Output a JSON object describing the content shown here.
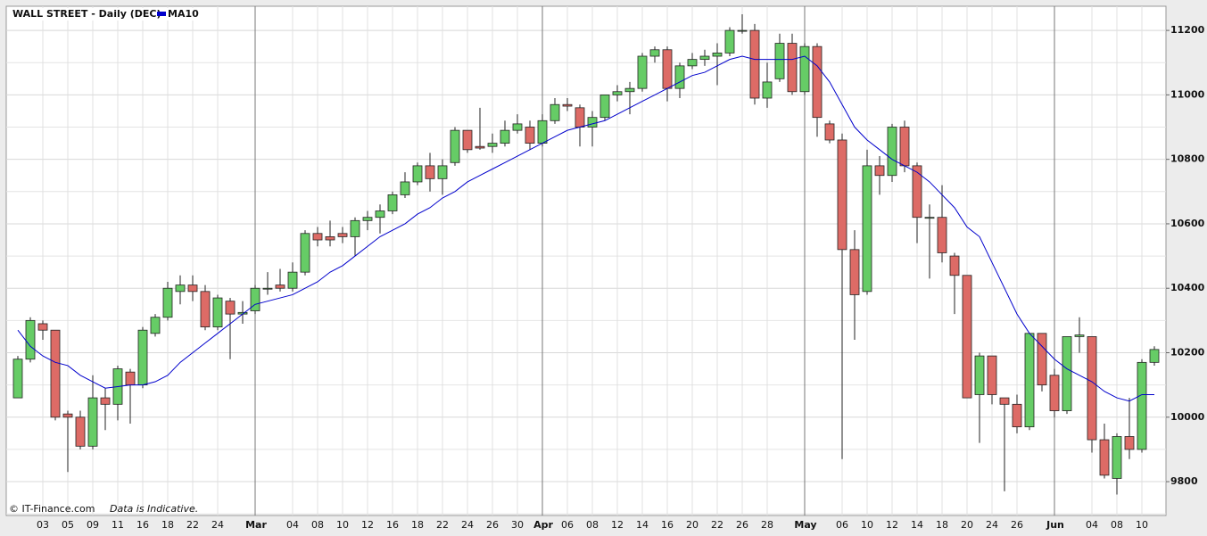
{
  "chart_data": {
    "type": "candlestick",
    "title": "WALL STREET - Daily (DEC)",
    "credit": "© IT-Finance.com",
    "note": "Data is Indicative.",
    "categories": [
      null,
      null,
      "03",
      null,
      "05",
      null,
      "09",
      null,
      "11",
      null,
      "16",
      null,
      "18",
      null,
      "22",
      null,
      "24",
      null,
      null,
      "Mar",
      null,
      null,
      "04",
      null,
      "08",
      null,
      "10",
      null,
      "12",
      null,
      "16",
      null,
      "18",
      null,
      "22",
      null,
      "24",
      null,
      "26",
      null,
      "30",
      null,
      "Apr",
      null,
      "06",
      null,
      "08",
      null,
      "12",
      null,
      "14",
      null,
      "16",
      null,
      "20",
      null,
      "22",
      null,
      "26",
      null,
      "28",
      null,
      null,
      "May",
      null,
      null,
      "06",
      null,
      "10",
      null,
      "12",
      null,
      "14",
      null,
      "18",
      null,
      "20",
      null,
      "24",
      null,
      "26",
      null,
      null,
      "Jun",
      null,
      null,
      "04",
      null,
      "08",
      null,
      "10",
      null
    ],
    "open": [
      10060,
      10180,
      10290,
      10270,
      10010,
      10000,
      9910,
      10060,
      10040,
      10140,
      10100,
      10260,
      10310,
      10390,
      10410,
      10390,
      10280,
      10360,
      10320,
      10330,
      10400,
      10410,
      10400,
      10450,
      10570,
      10560,
      10570,
      10560,
      10610,
      10620,
      10640,
      10690,
      10730,
      10780,
      10740,
      10790,
      10890,
      10840,
      10840,
      10850,
      10890,
      10900,
      10850,
      10920,
      10970,
      10960,
      10900,
      10930,
      11000,
      11010,
      11020,
      11120,
      11140,
      11020,
      11090,
      11110,
      11120,
      11130,
      11200,
      11200,
      10990,
      11050,
      11160,
      11010,
      11150,
      10910,
      10860,
      10520,
      10390,
      10780,
      10750,
      10900,
      10780,
      10620,
      10620,
      10500,
      10440,
      10070,
      10190,
      10060,
      10040,
      9970,
      10260,
      10130,
      10020,
      10250,
      10250,
      9930,
      9810,
      9940,
      9900,
      10170
    ],
    "high": [
      10190,
      10310,
      10300,
      10270,
      10020,
      10020,
      10130,
      10090,
      10160,
      10150,
      10280,
      10320,
      10420,
      10440,
      10440,
      10410,
      10380,
      10370,
      10360,
      10410,
      10450,
      10460,
      10480,
      10580,
      10590,
      10610,
      10590,
      10620,
      10640,
      10660,
      10700,
      10760,
      10790,
      10820,
      10800,
      10900,
      10890,
      10960,
      10880,
      10920,
      10940,
      10920,
      10940,
      10990,
      10990,
      10970,
      10950,
      11000,
      11030,
      11040,
      11130,
      11150,
      11150,
      11100,
      11130,
      11140,
      11160,
      11210,
      11250,
      11220,
      11100,
      11190,
      11190,
      11160,
      11160,
      10920,
      10880,
      10580,
      10830,
      10810,
      10910,
      10920,
      10790,
      10660,
      10720,
      10510,
      10440,
      10200,
      10190,
      10060,
      10070,
      10260,
      10260,
      10150,
      10250,
      10310,
      10250,
      9980,
      9950,
      10060,
      10180,
      10220
    ],
    "low": [
      10060,
      10170,
      10240,
      9990,
      9830,
      9900,
      9900,
      9960,
      9990,
      9980,
      10090,
      10250,
      10300,
      10350,
      10360,
      10270,
      10270,
      10180,
      10290,
      10320,
      10380,
      10390,
      10390,
      10440,
      10530,
      10530,
      10540,
      10500,
      10580,
      10570,
      10630,
      10680,
      10720,
      10700,
      10690,
      10780,
      10820,
      10830,
      10820,
      10840,
      10880,
      10830,
      10840,
      10910,
      10950,
      10840,
      10840,
      10920,
      10980,
      10940,
      11010,
      11100,
      10980,
      10990,
      11080,
      11090,
      11030,
      11120,
      11190,
      10970,
      10960,
      11040,
      11000,
      11000,
      10870,
      10850,
      9870,
      10240,
      10380,
      10690,
      10730,
      10760,
      10540,
      10430,
      10480,
      10320,
      10060,
      9920,
      10040,
      9770,
      9950,
      9960,
      10080,
      10000,
      10010,
      10200,
      9890,
      9810,
      9760,
      9870,
      9890,
      10160
    ],
    "close": [
      10180,
      10300,
      10270,
      10000,
      10000,
      9910,
      10060,
      10040,
      10150,
      10100,
      10270,
      10310,
      10400,
      10410,
      10390,
      10280,
      10370,
      10320,
      10325,
      10400,
      10400,
      10400,
      10450,
      10570,
      10550,
      10550,
      10560,
      10610,
      10620,
      10640,
      10690,
      10730,
      10780,
      10740,
      10780,
      10890,
      10830,
      10835,
      10850,
      10890,
      10910,
      10850,
      10920,
      10970,
      10965,
      10900,
      10930,
      11000,
      11010,
      11020,
      11120,
      11140,
      11020,
      11090,
      11110,
      11120,
      11130,
      11200,
      11200,
      10990,
      11040,
      11160,
      11010,
      11150,
      10930,
      10860,
      10520,
      10380,
      10780,
      10750,
      10900,
      10780,
      10620,
      10620,
      10510,
      10440,
      10060,
      10190,
      10070,
      10040,
      9970,
      10260,
      10100,
      10020,
      10250,
      10255,
      9930,
      9820,
      9940,
      9900,
      10170,
      10210
    ],
    "up_color": "#66cc66",
    "down_color": "#dd6b66",
    "series": [
      {
        "name": "MA10",
        "color": "#0000cc",
        "values": [
          10270,
          10220,
          10190,
          10170,
          10160,
          10130,
          10110,
          10090,
          10095,
          10100,
          10100,
          10110,
          10130,
          10170,
          10200,
          10230,
          10260,
          10290,
          10320,
          10350,
          10360,
          10370,
          10380,
          10400,
          10420,
          10450,
          10470,
          10500,
          10530,
          10560,
          10580,
          10600,
          10630,
          10650,
          10680,
          10700,
          10730,
          10750,
          10770,
          10790,
          10810,
          10830,
          10850,
          10870,
          10890,
          10900,
          10910,
          10920,
          10940,
          10960,
          10980,
          11000,
          11020,
          11040,
          11060,
          11070,
          11090,
          11110,
          11120,
          11110,
          11110,
          11110,
          11110,
          11120,
          11090,
          11040,
          10970,
          10900,
          10860,
          10830,
          10800,
          10780,
          10760,
          10730,
          10690,
          10650,
          10590,
          10560,
          10480,
          10400,
          10320,
          10260,
          10220,
          10180,
          10150,
          10130,
          10110,
          10080,
          10060,
          10050,
          10070,
          10070
        ]
      }
    ],
    "ylim": [
      9695,
      11275
    ],
    "yticks": [
      9800,
      10000,
      10200,
      10400,
      10600,
      10800,
      11000,
      11200
    ],
    "minor_yticks": [
      9700,
      9900,
      10100,
      10300,
      10500,
      10700,
      10900,
      11100
    ],
    "grid": true
  }
}
